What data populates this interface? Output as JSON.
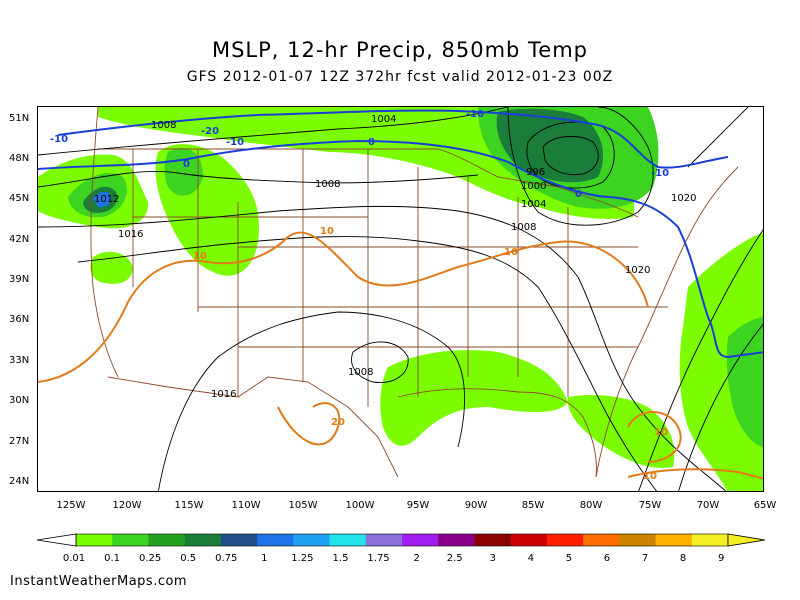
{
  "header": {
    "title": "MSLP, 12-hr Precip, 850mb Temp",
    "subtitle": "GFS 2012-01-07 12Z 372hr fcst valid 2012-01-23 00Z"
  },
  "axes": {
    "lat_labels": [
      "51N",
      "48N",
      "45N",
      "42N",
      "39N",
      "36N",
      "33N",
      "30N",
      "27N",
      "24N"
    ],
    "lon_labels": [
      "125W",
      "120W",
      "115W",
      "110W",
      "105W",
      "100W",
      "95W",
      "90W",
      "85W",
      "80W",
      "75W",
      "70W",
      "65W"
    ]
  },
  "map": {
    "pressure_labels": [
      "1008",
      "1004",
      "1008",
      "1012",
      "1016",
      "996",
      "1000",
      "1004",
      "1008",
      "1020",
      "1020",
      "1008",
      "1016"
    ],
    "temp_labels": [
      "-10",
      "-20",
      "-10",
      "0",
      "-10",
      "0",
      "0",
      "-10",
      "10",
      "10",
      "10",
      "20",
      "10",
      "10"
    ],
    "colors": {
      "isobar": "#000000",
      "temp_cold": "#1a3fd8",
      "temp_warm": "#e07b1a",
      "border": "#8b4a2a"
    }
  },
  "legend": {
    "labels": [
      "0.01",
      "0.1",
      "0.25",
      "0.5",
      "0.75",
      "1",
      "1.25",
      "1.5",
      "1.75",
      "2",
      "2.5",
      "3",
      "4",
      "5",
      "6",
      "7",
      "8",
      "9"
    ],
    "colors": [
      "#7cfc00",
      "#3cd321",
      "#22a021",
      "#1a7d3a",
      "#1f4e8c",
      "#1e73e8",
      "#1ea0f0",
      "#22e4e8",
      "#8a70d8",
      "#a020f0",
      "#8b008b",
      "#8b0000",
      "#cd0000",
      "#ff2000",
      "#ff6e00",
      "#cc8400",
      "#ffb000",
      "#f4ee22"
    ]
  },
  "footer": {
    "credit": "InstantWeatherMaps.com"
  }
}
